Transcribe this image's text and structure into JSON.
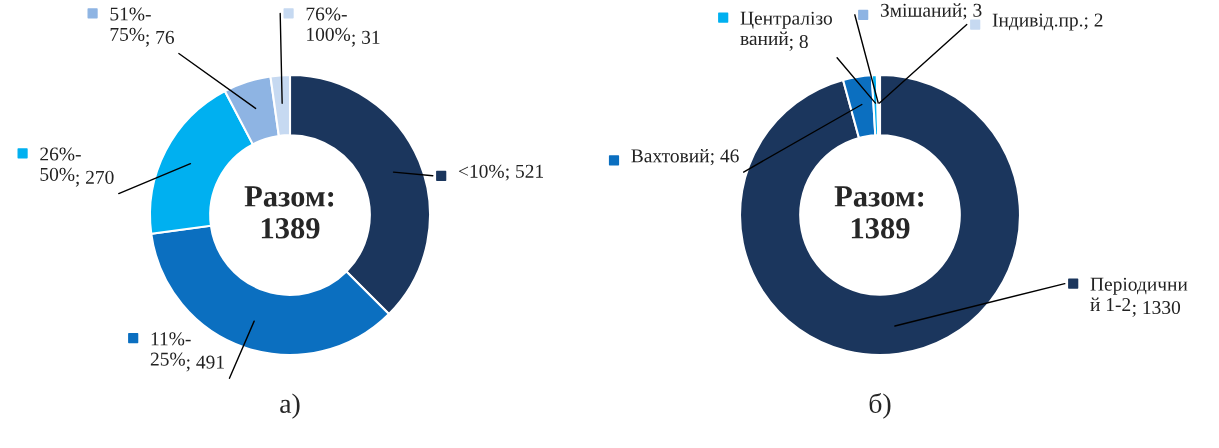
{
  "chart_data": [
    {
      "type": "donut",
      "title": "а)",
      "categories": [
        "<10%",
        "11%-\n25%",
        "26%-\n50%",
        "51%-\n75%",
        "76%-\n100%"
      ],
      "values": [
        521,
        491,
        270,
        76,
        31
      ],
      "colors": [
        "#1b365d",
        "#0b6fc0",
        "#00b0f0",
        "#8eb4e3",
        "#c6d9f1"
      ],
      "value_labels": [
        "; 521",
        "; 491",
        "; 270",
        "; 76",
        "; 31"
      ],
      "legend": "top",
      "annotations": [
        "Разом:\n1389"
      ]
    },
    {
      "type": "donut",
      "title": "б)",
      "categories": [
        "Періодични\nй 1-2",
        "Вахтовий",
        "Централізо\nваний",
        "Змішаний",
        "Індивід.пр."
      ],
      "values": [
        1330,
        46,
        8,
        3,
        2
      ],
      "colors": [
        "#1b365d",
        "#0b6fc0",
        "#00b0f0",
        "#8eb4e3",
        "#c6d9f1"
      ],
      "value_labels": [
        "; 1330",
        "; 46",
        "; 8",
        "; 3",
        "; 2"
      ],
      "legend": "top",
      "annotations": [
        "Разом:\n1389"
      ]
    }
  ]
}
